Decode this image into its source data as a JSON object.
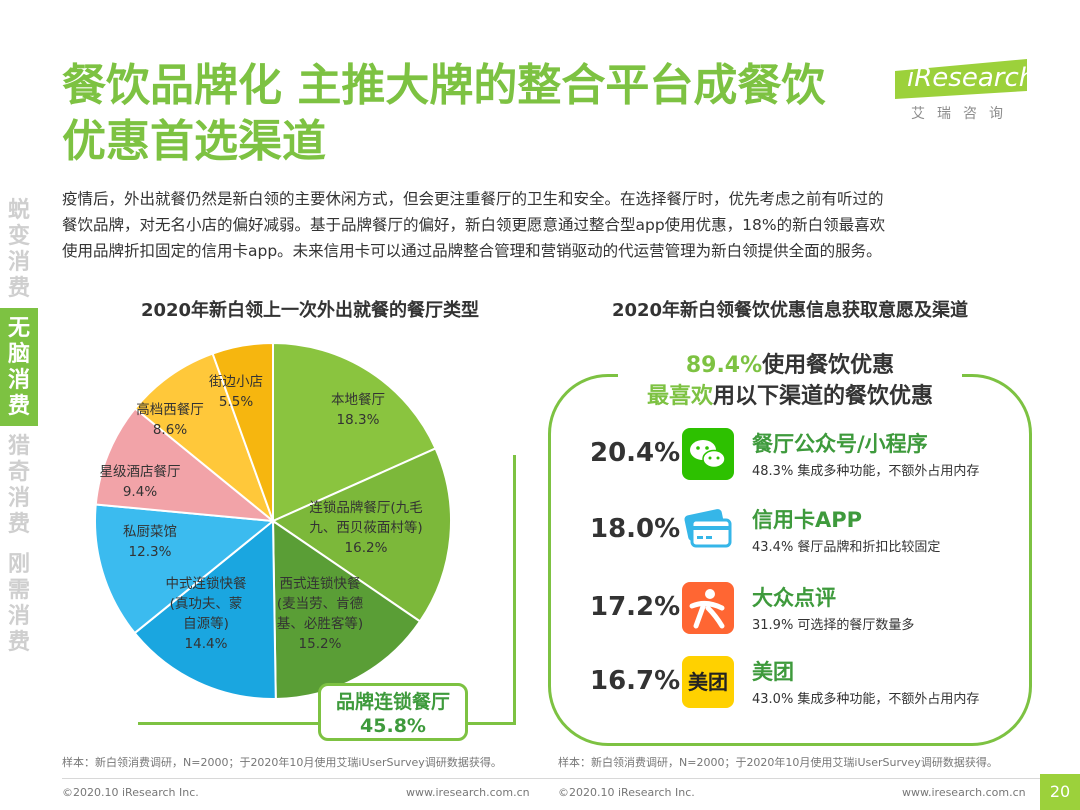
{
  "header": {
    "title_line1": "餐饮品牌化 主推大牌的整合平台成餐饮",
    "title_line2": "优惠首选渠道",
    "logo_text": "iResearch",
    "logo_sub": "艾瑞咨询"
  },
  "sidebar": {
    "items": [
      {
        "chars": [
          "蜕",
          "变",
          "消",
          "费"
        ],
        "active": false
      },
      {
        "chars": [
          "无",
          "脑",
          "消",
          "费"
        ],
        "active": true
      },
      {
        "chars": [
          "猎",
          "奇",
          "消",
          "费"
        ],
        "active": false
      },
      {
        "chars": [
          "刚",
          "需",
          "消",
          "费"
        ],
        "active": false
      }
    ]
  },
  "intro": {
    "line1": "疫情后，外出就餐仍然是新白领的主要休闲方式，但会更注重餐厅的卫生和安全。在选择餐厅时，优先考虑之前有听过的",
    "line2": "餐饮品牌，对无名小店的偏好减弱。基于品牌餐厅的偏好，新白领更愿意通过整合型app使用优惠，18%的新白领最喜欢",
    "line3": "使用品牌折扣固定的信用卡app。未来信用卡可以通过品牌整合管理和营销驱动的代运营管理为新白领提供全面的服务。"
  },
  "chart_data": [
    {
      "type": "pie",
      "title": "2020年新白领上一次外出就餐的餐厅类型",
      "series": [
        {
          "name": "本地餐厅",
          "label_lines": [
            "本地餐厅"
          ],
          "value": 18.3,
          "color": "#8ac43f"
        },
        {
          "name": "连锁品牌餐厅(九毛九、西贝莜面村等)",
          "label_lines": [
            "连锁品牌餐厅(九毛",
            "九、西贝莜面村等)"
          ],
          "value": 16.2,
          "color": "#7cb83a"
        },
        {
          "name": "西式连锁快餐(麦当劳、肯德基、必胜客等)",
          "label_lines": [
            "西式连锁快餐",
            "(麦当劳、肯德",
            "基、必胜客等)"
          ],
          "value": 15.2,
          "color": "#5a9e36"
        },
        {
          "name": "中式连锁快餐(真功夫、蒙自源等)",
          "label_lines": [
            "中式连锁快餐",
            "(真功夫、蒙",
            "自源等)"
          ],
          "value": 14.4,
          "color": "#1aa6e0"
        },
        {
          "name": "私厨菜馆",
          "label_lines": [
            "私厨菜馆"
          ],
          "value": 12.3,
          "color": "#3bbbef"
        },
        {
          "name": "星级酒店餐厅",
          "label_lines": [
            "星级酒店餐厅"
          ],
          "value": 9.4,
          "color": "#f2a3a8"
        },
        {
          "name": "高档西餐厅",
          "label_lines": [
            "高档西餐厅"
          ],
          "value": 8.6,
          "color": "#ffc83a"
        },
        {
          "name": "街边小店",
          "label_lines": [
            "街边小店"
          ],
          "value": 5.5,
          "color": "#f6b60f"
        }
      ],
      "callout": {
        "label": "品牌连锁餐厅",
        "value": "45.8%"
      }
    },
    {
      "type": "table",
      "title": "2020年新白领餐饮优惠信息获取意愿及渠道",
      "headline_pct": "89.4%",
      "headline_text": "使用餐饮优惠",
      "subhead_green": "最喜欢",
      "subhead_text": "用以下渠道的餐饮优惠",
      "rows": [
        {
          "pct": "20.4%",
          "name": "餐厅公众号/小程序",
          "desc": "48.3% 集成多种功能，不额外占用内存",
          "icon": "wechat-icon",
          "color": "#2dc100"
        },
        {
          "pct": "18.0%",
          "name": "信用卡APP",
          "desc": "43.4% 餐厅品牌和折扣比较固定",
          "icon": "credit-card-icon",
          "color": "#35b6e8"
        },
        {
          "pct": "17.2%",
          "name": "大众点评",
          "desc": "31.9% 可选择的餐厅数量多",
          "icon": "dianping-icon",
          "color": "#ff6633"
        },
        {
          "pct": "16.7%",
          "name": "美团",
          "desc": "43.0% 集成多种功能，不额外占用内存",
          "icon": "meituan-icon",
          "color": "#ffd100",
          "icon_text": "美团"
        }
      ]
    }
  ],
  "notes": {
    "left": "样本：新白领消费调研，N=2000；于2020年10月使用艾瑞iUserSurvey调研数据获得。",
    "right": "样本：新白领消费调研，N=2000；于2020年10月使用艾瑞iUserSurvey调研数据获得。"
  },
  "footer": {
    "copyright_left": "©2020.10 iResearch Inc.",
    "url_left": "www.iresearch.com.cn",
    "copyright_right": "©2020.10 iResearch Inc.",
    "url_right": "www.iresearch.com.cn",
    "page": "20"
  }
}
